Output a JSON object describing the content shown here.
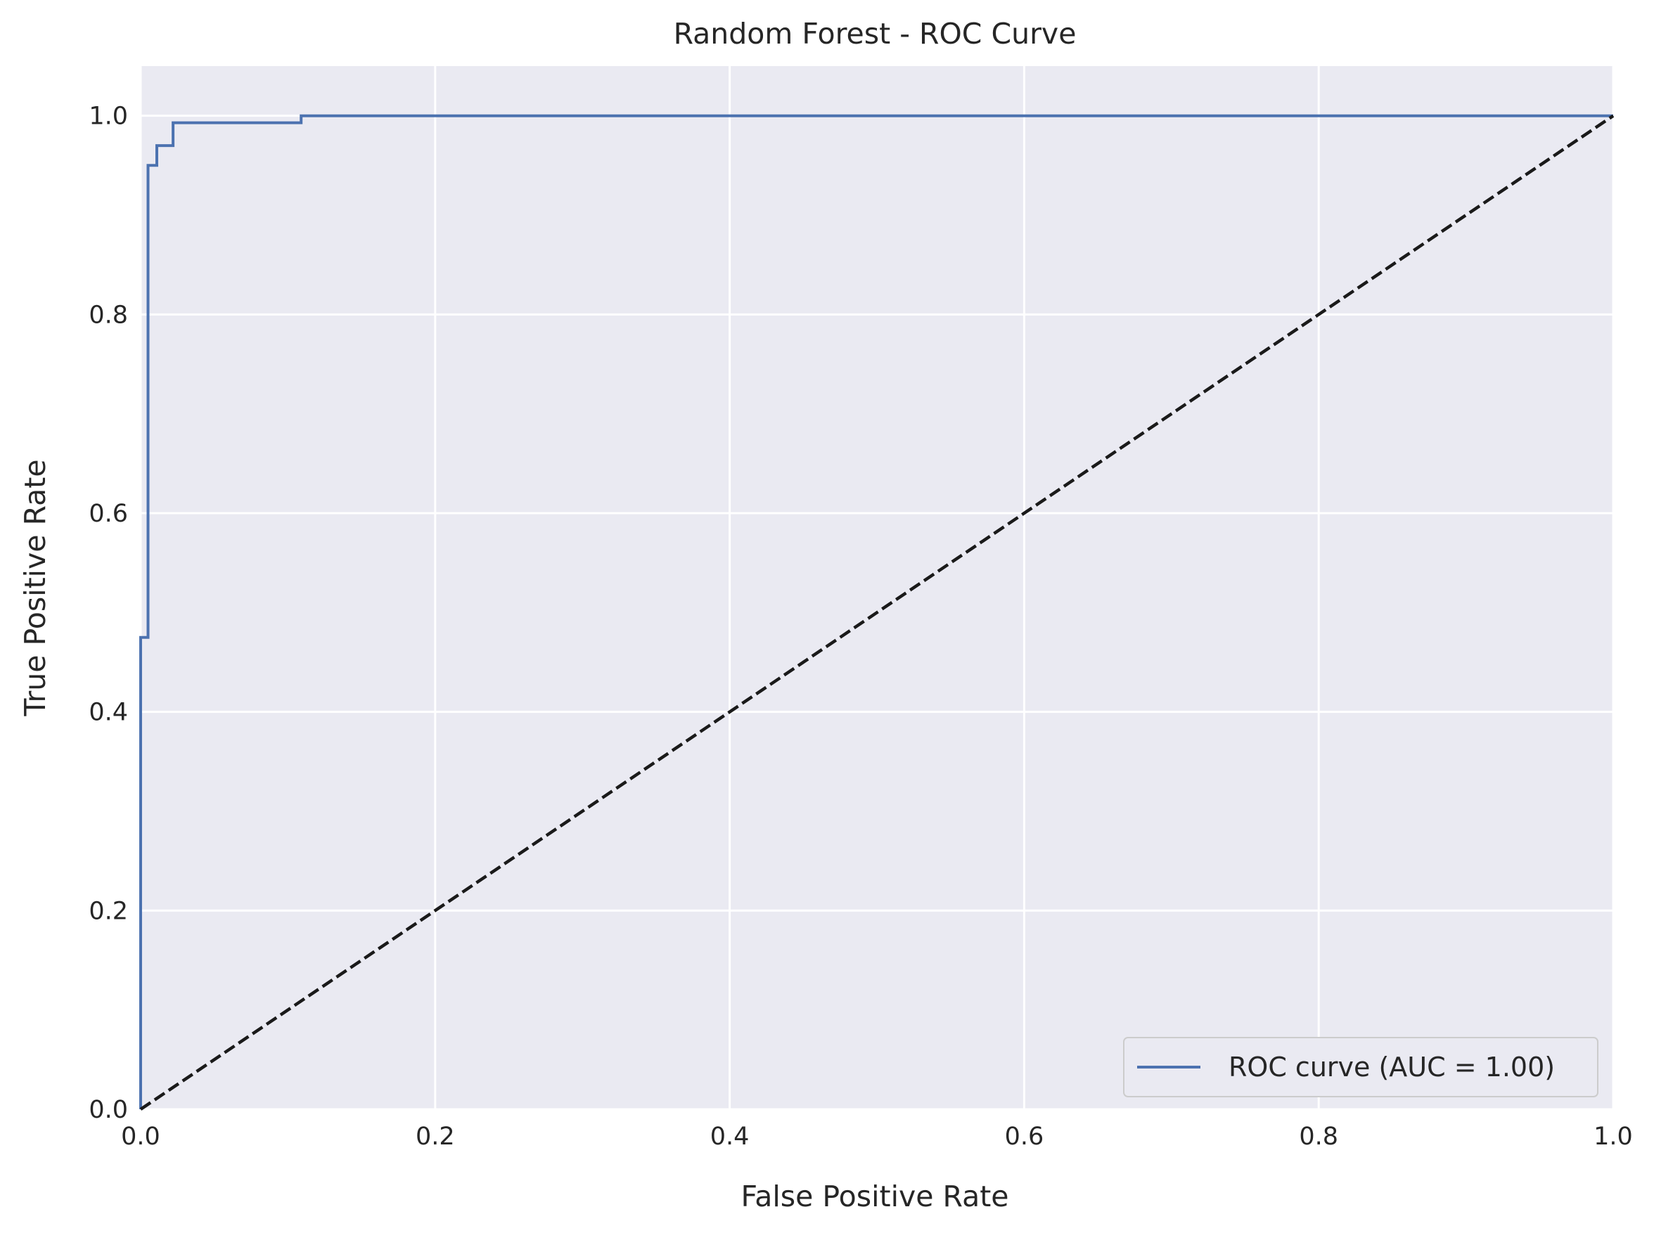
{
  "chart_data": {
    "type": "line",
    "title": "Random Forest - ROC Curve",
    "xlabel": "False Positive Rate",
    "ylabel": "True Positive Rate",
    "xlim": [
      0.0,
      1.0
    ],
    "ylim": [
      0.0,
      1.05
    ],
    "xticks": [
      "0.0",
      "0.2",
      "0.4",
      "0.6",
      "0.8",
      "1.0"
    ],
    "yticks": [
      "0.0",
      "0.2",
      "0.4",
      "0.6",
      "0.8",
      "1.0"
    ],
    "grid": true,
    "legend_position": "bottom-right",
    "background_color": "#eaeaf2",
    "series": [
      {
        "name": "ROC curve (AUC = 1.00)",
        "color": "#4c72b0",
        "style": "solid",
        "x": [
          0.0,
          0.0,
          0.005,
          0.005,
          0.011,
          0.011,
          0.022,
          0.022,
          0.109,
          0.109,
          1.0
        ],
        "y": [
          0.0,
          0.475,
          0.475,
          0.95,
          0.95,
          0.97,
          0.97,
          0.993,
          0.993,
          1.0,
          1.0
        ]
      },
      {
        "name": "",
        "color": "#1a1a1a",
        "style": "dashed",
        "x": [
          0.0,
          1.0
        ],
        "y": [
          0.0,
          1.0
        ]
      }
    ]
  }
}
